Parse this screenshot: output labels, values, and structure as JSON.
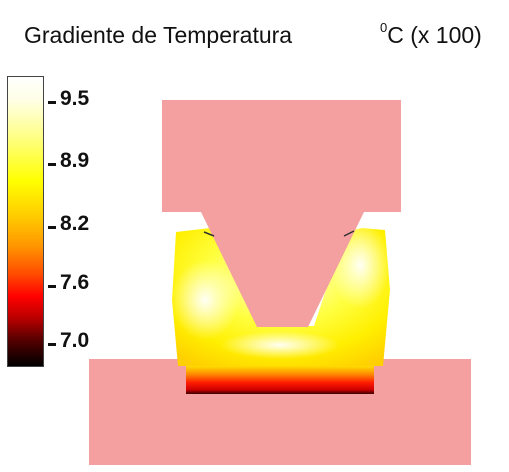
{
  "header": {
    "title": "Gradiente de Temperatura",
    "unit_sup": "0",
    "unit_text": "C (x 100)"
  },
  "colorbar": {
    "labels": [
      "9.5",
      "8.9",
      "8.2",
      "7.6",
      "7.0"
    ]
  },
  "colors": {
    "die": "#f4a0a0",
    "hot": "#ffffff",
    "warm": "#ffff00",
    "cool": "#ff0000",
    "cold": "#000000"
  }
}
